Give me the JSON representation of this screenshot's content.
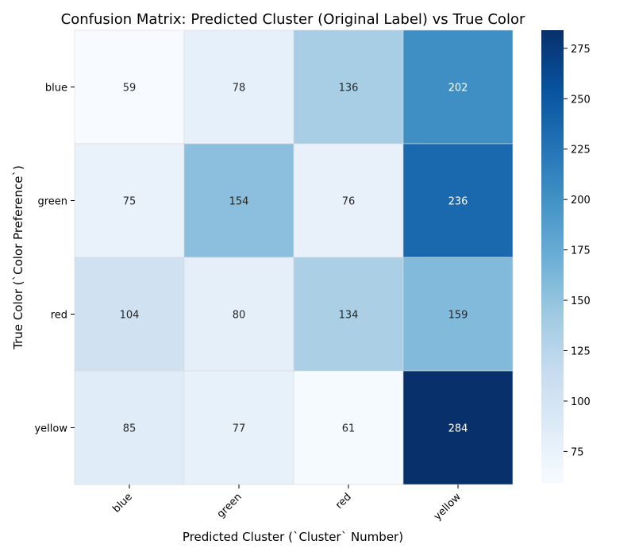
{
  "chart_data": {
    "type": "heatmap",
    "title": "Confusion Matrix: Predicted Cluster (Original Label) vs True Color",
    "xlabel": "Predicted Cluster (`Cluster` Number)",
    "ylabel": "True Color (`Color Preference`)",
    "x_categories": [
      "blue",
      "green",
      "red",
      "yellow"
    ],
    "y_categories": [
      "blue",
      "green",
      "red",
      "yellow"
    ],
    "values": [
      [
        59,
        78,
        136,
        202
      ],
      [
        75,
        154,
        76,
        236
      ],
      [
        104,
        80,
        134,
        159
      ],
      [
        85,
        77,
        61,
        284
      ]
    ],
    "colorbar": {
      "min": 59,
      "max": 284,
      "ticks": [
        75,
        100,
        125,
        150,
        175,
        200,
        225,
        250,
        275
      ],
      "colormap": "Blues"
    },
    "annotated": true,
    "grid": false
  }
}
